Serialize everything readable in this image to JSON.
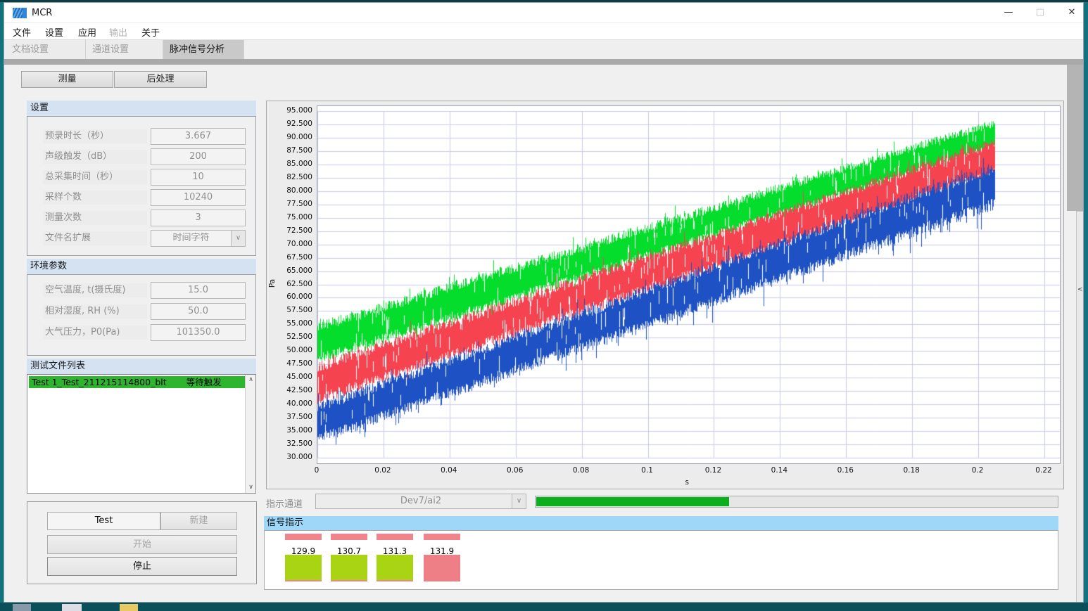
{
  "window": {
    "title": "MCR"
  },
  "icons": {
    "minimize": "—",
    "maximize": "□",
    "close": "✕",
    "chevron_down": "∨",
    "scroll_up": "∧",
    "scroll_down": "∨",
    "collapse_left": "<"
  },
  "menu": {
    "items": [
      {
        "label": "文件",
        "enabled": true
      },
      {
        "label": "设置",
        "enabled": true
      },
      {
        "label": "应用",
        "enabled": true
      },
      {
        "label": "输出",
        "enabled": false
      },
      {
        "label": "关于",
        "enabled": true
      }
    ]
  },
  "tabs": [
    {
      "label": "文档设置",
      "active": false
    },
    {
      "label": "通道设置",
      "active": false
    },
    {
      "label": "脉冲信号分析",
      "active": true
    }
  ],
  "toolbar": {
    "measure_label": "测量",
    "postprocess_label": "后处理"
  },
  "settings": {
    "header": "设置",
    "fields": [
      {
        "label": "预录时长（秒）",
        "value": "3.667"
      },
      {
        "label": "声级触发（dB）",
        "value": "200"
      },
      {
        "label": "总采集时间（秒）",
        "value": "10"
      },
      {
        "label": "采样个数",
        "value": "10240"
      },
      {
        "label": "测量次数",
        "value": "3"
      },
      {
        "label": "文件名扩展",
        "value": "时间字符",
        "type": "dropdown"
      }
    ]
  },
  "environment": {
    "header": "环境参数",
    "fields": [
      {
        "label": "空气温度, t(摄氏度)",
        "value": "15.0"
      },
      {
        "label": "相对湿度, RH (%)",
        "value": "50.0"
      },
      {
        "label": "大气压力，P0(Pa)",
        "value": "101350.0"
      }
    ]
  },
  "file_list": {
    "header": "测试文件列表",
    "items": [
      {
        "name": "Test 1_Test_211215114800_blt",
        "status": "等待触发",
        "highlight_color": "#2db62d"
      }
    ]
  },
  "controls": {
    "test_label": "Test",
    "new_label": "新建",
    "start_label": "开始",
    "stop_label": "停止"
  },
  "indicator": {
    "channel_label": "指示通道",
    "channel_value": "Dev7/ai2",
    "progress_percent": 37,
    "progress_color": "#0fae1e"
  },
  "signal": {
    "header": "信号指示",
    "strip_color": "#f2838a",
    "items": [
      {
        "value": "129.9",
        "color": "#a8d414"
      },
      {
        "value": "130.7",
        "color": "#a8d414"
      },
      {
        "value": "131.3",
        "color": "#a8d414"
      },
      {
        "value": "131.9",
        "color": "#ee7f86"
      }
    ]
  },
  "chart_data": {
    "type": "line",
    "title": "",
    "xlabel": "s",
    "ylabel": "Pa",
    "xlim": [
      0,
      0.22
    ],
    "ylim": [
      30,
      95
    ],
    "x_ticks": [
      0,
      0.02,
      0.04,
      0.06,
      0.08,
      0.1,
      0.12,
      0.14,
      0.16,
      0.18,
      0.2,
      0.22
    ],
    "y_tick_step": 2.5,
    "grid": true,
    "grid_color": "#c9cce6",
    "x_data_end": 0.205,
    "description": "Three dense noisy sound-pressure bands rising approximately linearly from t=0 to t=0.205 s",
    "series": [
      {
        "name": "channel-green",
        "color": "#05dd2c",
        "band_start": [
          47.5,
          55.5
        ],
        "band_end": [
          87.5,
          93.5
        ]
      },
      {
        "name": "channel-red",
        "color": "#f54350",
        "band_start": [
          40.0,
          48.0
        ],
        "band_end": [
          82.5,
          90.0
        ]
      },
      {
        "name": "channel-blue",
        "color": "#1e52c4",
        "band_start": [
          32.5,
          40.5
        ],
        "band_end": [
          76.5,
          85.5
        ]
      }
    ]
  }
}
